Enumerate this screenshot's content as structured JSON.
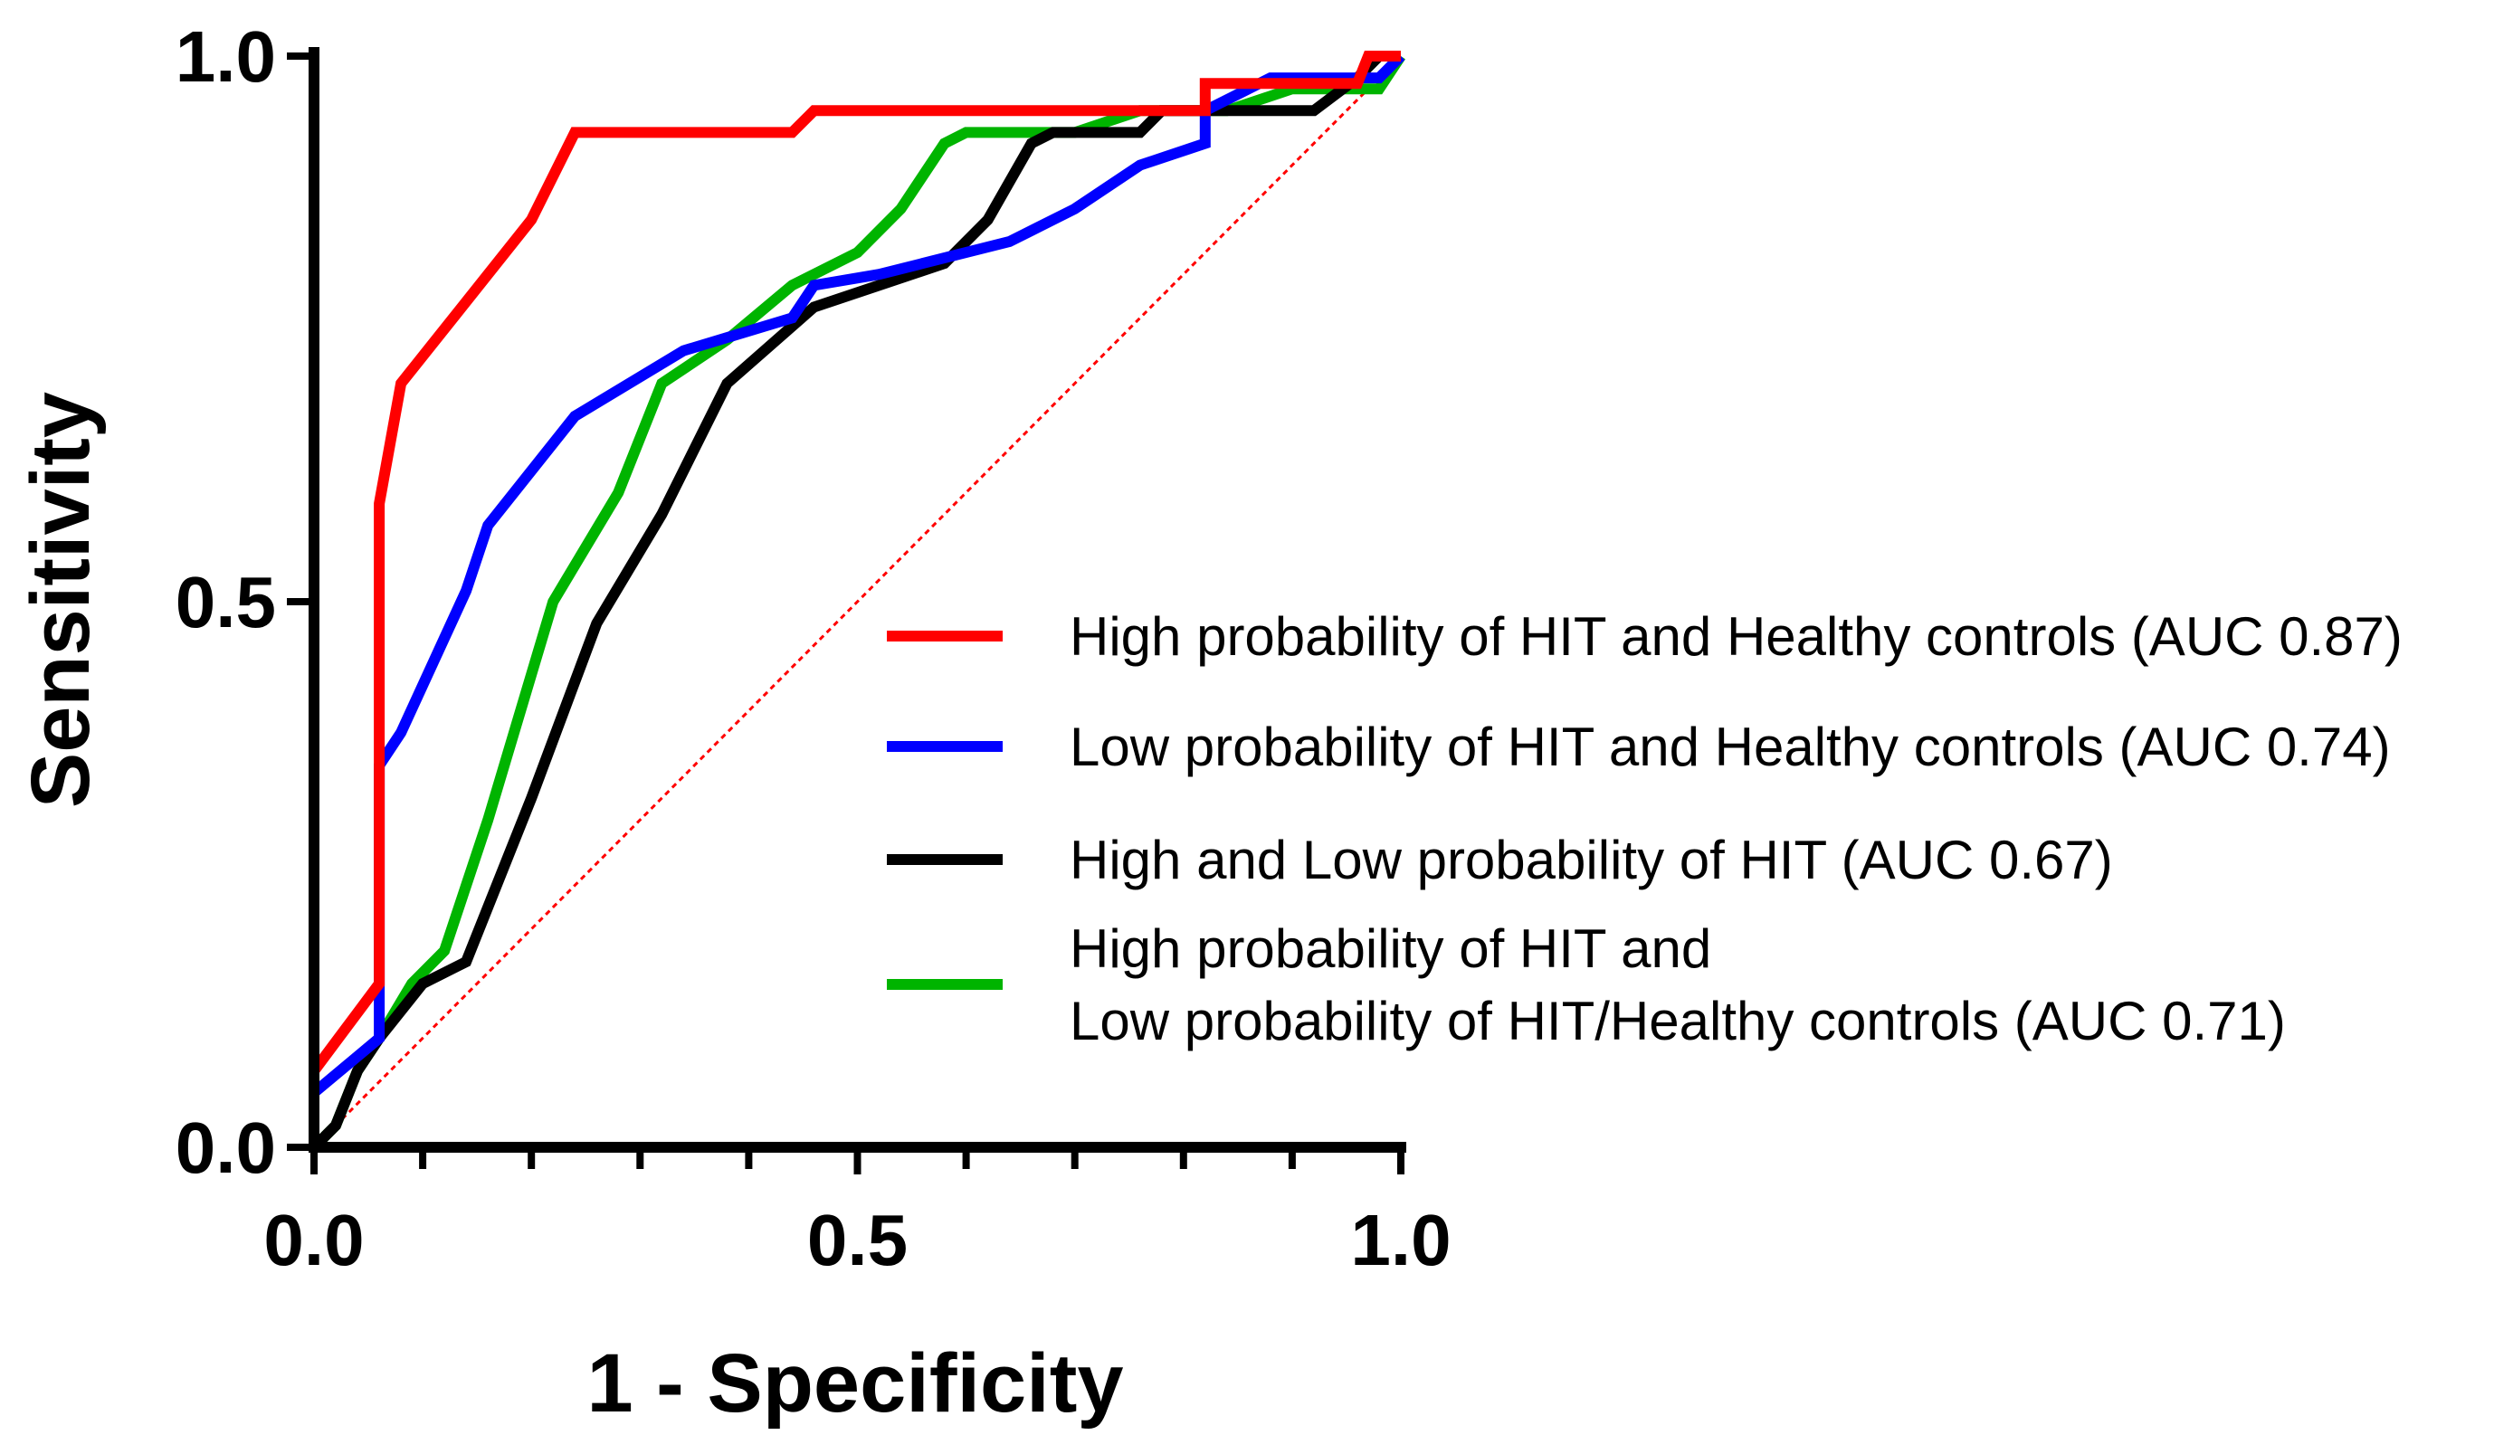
{
  "chart_data": {
    "type": "line",
    "title": "",
    "xlabel": "1 - Specificity",
    "ylabel": "Sensitivity",
    "xlim": [
      0,
      1
    ],
    "ylim": [
      0,
      1
    ],
    "x_ticks": [
      "0.0",
      "0.5",
      "1.0"
    ],
    "y_ticks": [
      "0.0",
      "0.5",
      "1.0"
    ],
    "reference_line": {
      "name": "chance",
      "color": "#ff0000",
      "x": [
        0,
        1
      ],
      "y": [
        0,
        1
      ],
      "style": "dotted"
    },
    "series": [
      {
        "name": "High probability of HIT and Healthy controls (AUC 0.87)",
        "legend_lines": [
          "High probability of HIT and Healthy controls (AUC 0.87)"
        ],
        "color": "#ff0000",
        "x": [
          0,
          0,
          0.06,
          0.06,
          0.08,
          0.2,
          0.24,
          0.44,
          0.46,
          0.82,
          0.82,
          0.96,
          0.97,
          1.0
        ],
        "y": [
          0,
          0.07,
          0.15,
          0.59,
          0.7,
          0.85,
          0.93,
          0.93,
          0.95,
          0.95,
          0.975,
          0.975,
          1.0,
          1.0
        ]
      },
      {
        "name": "Low probability of HIT and Healthy controls (AUC 0.74)",
        "legend_lines": [
          "Low probability of HIT and Healthy controls (AUC 0.74)"
        ],
        "color": "#0000ff",
        "x": [
          0,
          0.06,
          0.06,
          0.08,
          0.14,
          0.16,
          0.24,
          0.34,
          0.44,
          0.46,
          0.52,
          0.56,
          0.64,
          0.7,
          0.76,
          0.82,
          0.82,
          0.88,
          0.98,
          1.0
        ],
        "y": [
          0.05,
          0.1,
          0.35,
          0.38,
          0.51,
          0.57,
          0.67,
          0.73,
          0.76,
          0.79,
          0.8,
          0.81,
          0.83,
          0.86,
          0.9,
          0.92,
          0.95,
          0.98,
          0.98,
          1.0
        ]
      },
      {
        "name": "High and Low probability of HIT (AUC 0.67)",
        "legend_lines": [
          "High and Low probability of HIT (AUC 0.67)"
        ],
        "color": "#000000",
        "x": [
          0,
          0.02,
          0.04,
          0.06,
          0.1,
          0.14,
          0.2,
          0.26,
          0.32,
          0.38,
          0.46,
          0.52,
          0.58,
          0.62,
          0.66,
          0.68,
          0.76,
          0.78,
          0.92,
          0.96,
          0.98
        ],
        "y": [
          0,
          0.02,
          0.07,
          0.1,
          0.15,
          0.17,
          0.32,
          0.48,
          0.58,
          0.7,
          0.77,
          0.79,
          0.81,
          0.85,
          0.92,
          0.93,
          0.93,
          0.95,
          0.95,
          0.98,
          1.0
        ]
      },
      {
        "name": "High probability of HIT and Low probability of HIT/Healthy controls (AUC 0.71)",
        "legend_lines": [
          "High probability of HIT and",
          "Low probability of HIT/Healthy controls (AUC 0.71)"
        ],
        "color": "#00b400",
        "x": [
          0,
          0.02,
          0.04,
          0.06,
          0.09,
          0.12,
          0.16,
          0.22,
          0.28,
          0.32,
          0.38,
          0.44,
          0.5,
          0.54,
          0.58,
          0.6,
          0.7,
          0.76,
          0.84,
          0.9,
          0.98,
          1.0
        ],
        "y": [
          0,
          0.02,
          0.07,
          0.1,
          0.15,
          0.18,
          0.3,
          0.5,
          0.6,
          0.7,
          0.74,
          0.79,
          0.82,
          0.86,
          0.92,
          0.93,
          0.93,
          0.95,
          0.95,
          0.97,
          0.97,
          1.0
        ]
      }
    ],
    "legend_position": "center-right"
  }
}
